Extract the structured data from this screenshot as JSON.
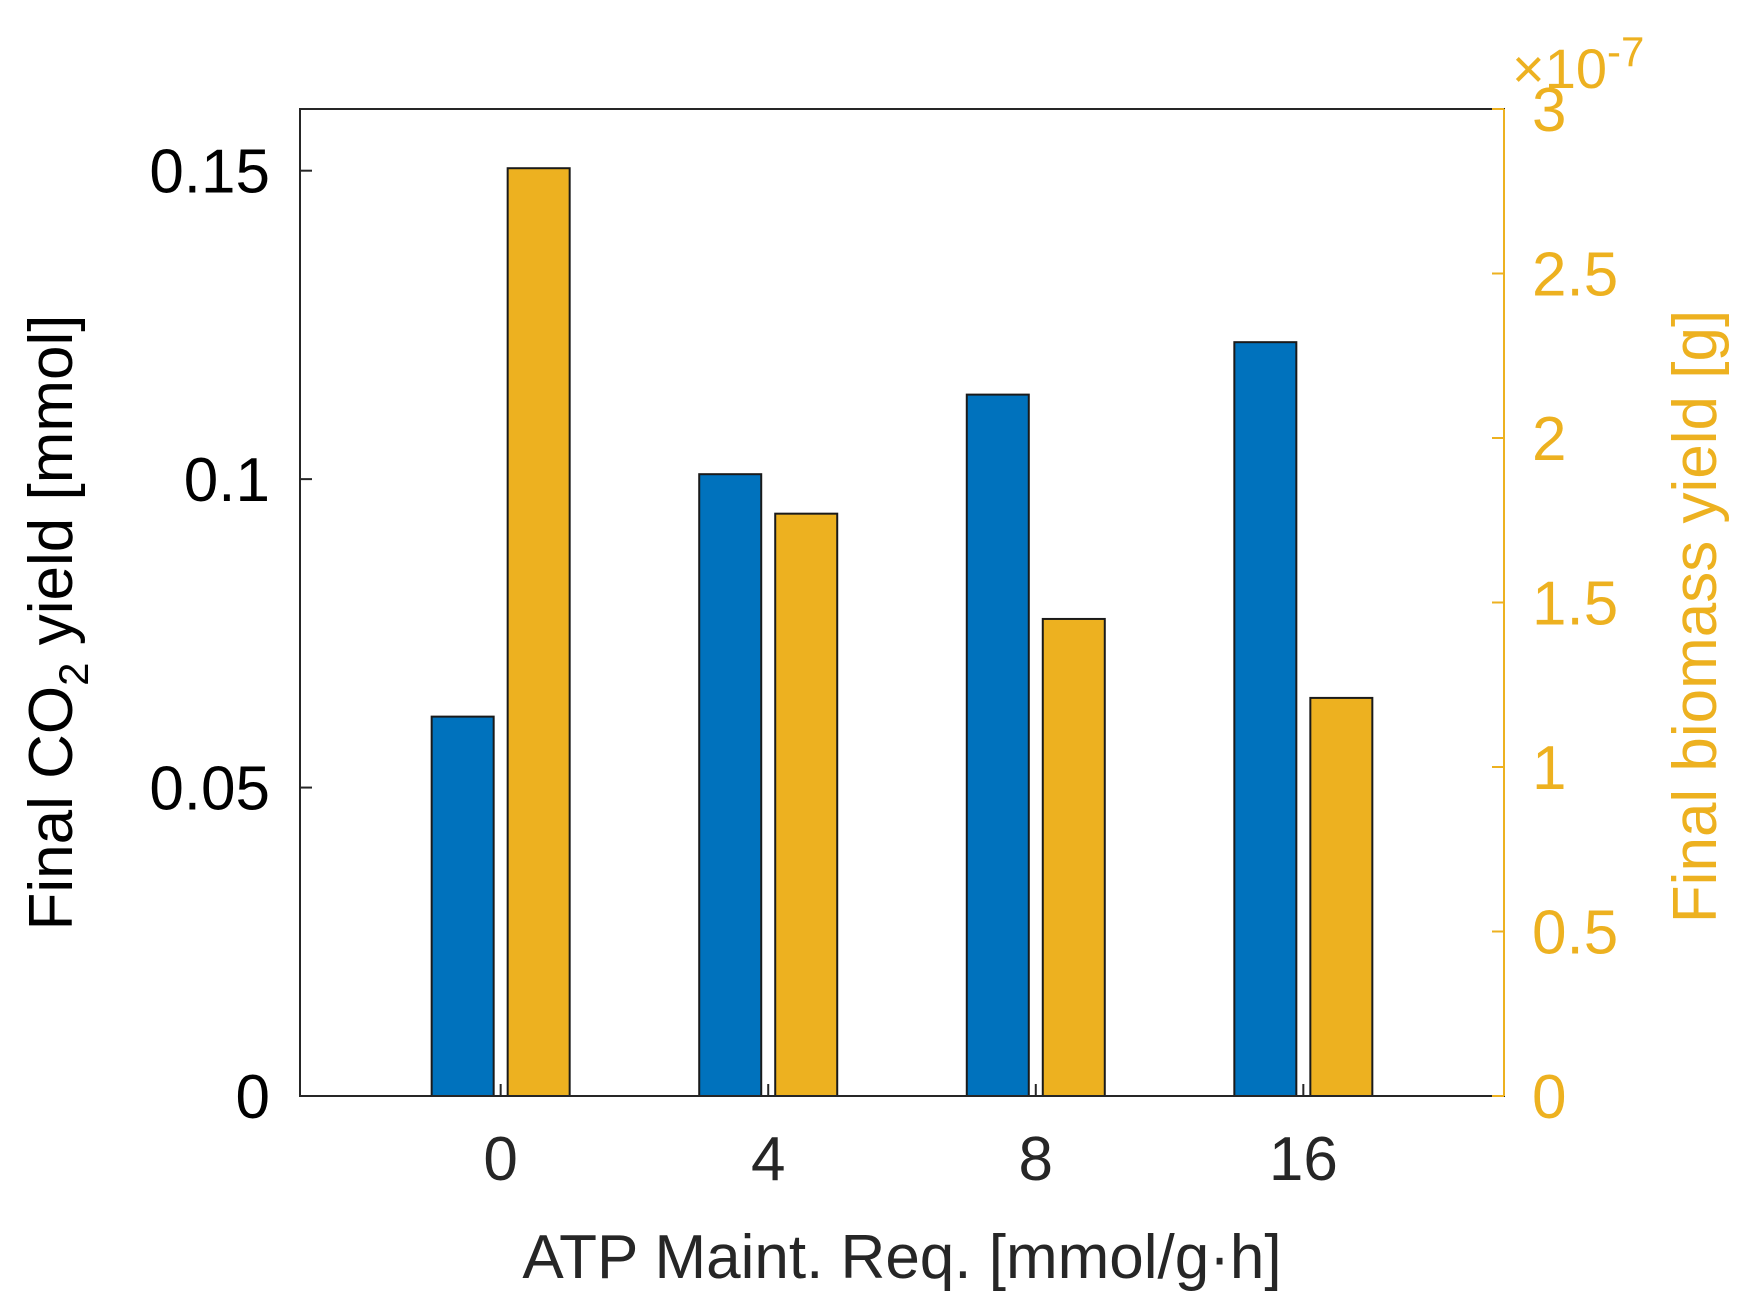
{
  "chart_data": {
    "type": "bar",
    "categories": [
      "0",
      "4",
      "8",
      "16"
    ],
    "series": [
      {
        "axis": "left",
        "color": "#0072BD",
        "values": [
          0.0615,
          0.1008,
          0.1137,
          0.1222
        ]
      },
      {
        "axis": "right",
        "color": "#EDB120",
        "values": [
          2.82e-07,
          1.77e-07,
          1.45e-07,
          1.21e-07
        ]
      }
    ],
    "xlabel": "ATP Maint. Req. [mmol/g·h]",
    "ylabel_left": {
      "prefix": "Final CO",
      "subscript": "2",
      "suffix": " yield [mmol]"
    },
    "ylabel_right": "Final biomass yield [g]",
    "ylim_left": [
      0,
      0.16
    ],
    "yticks_left": [
      "0",
      "0.05",
      "0.1",
      "0.15"
    ],
    "ylim_right": [
      0,
      3e-07
    ],
    "yticks_right": [
      "0",
      "0.5",
      "1",
      "1.5",
      "2",
      "2.5",
      "3"
    ],
    "right_exponent": {
      "base": "×10",
      "power": "-7"
    },
    "grid": false,
    "legend": "none"
  }
}
